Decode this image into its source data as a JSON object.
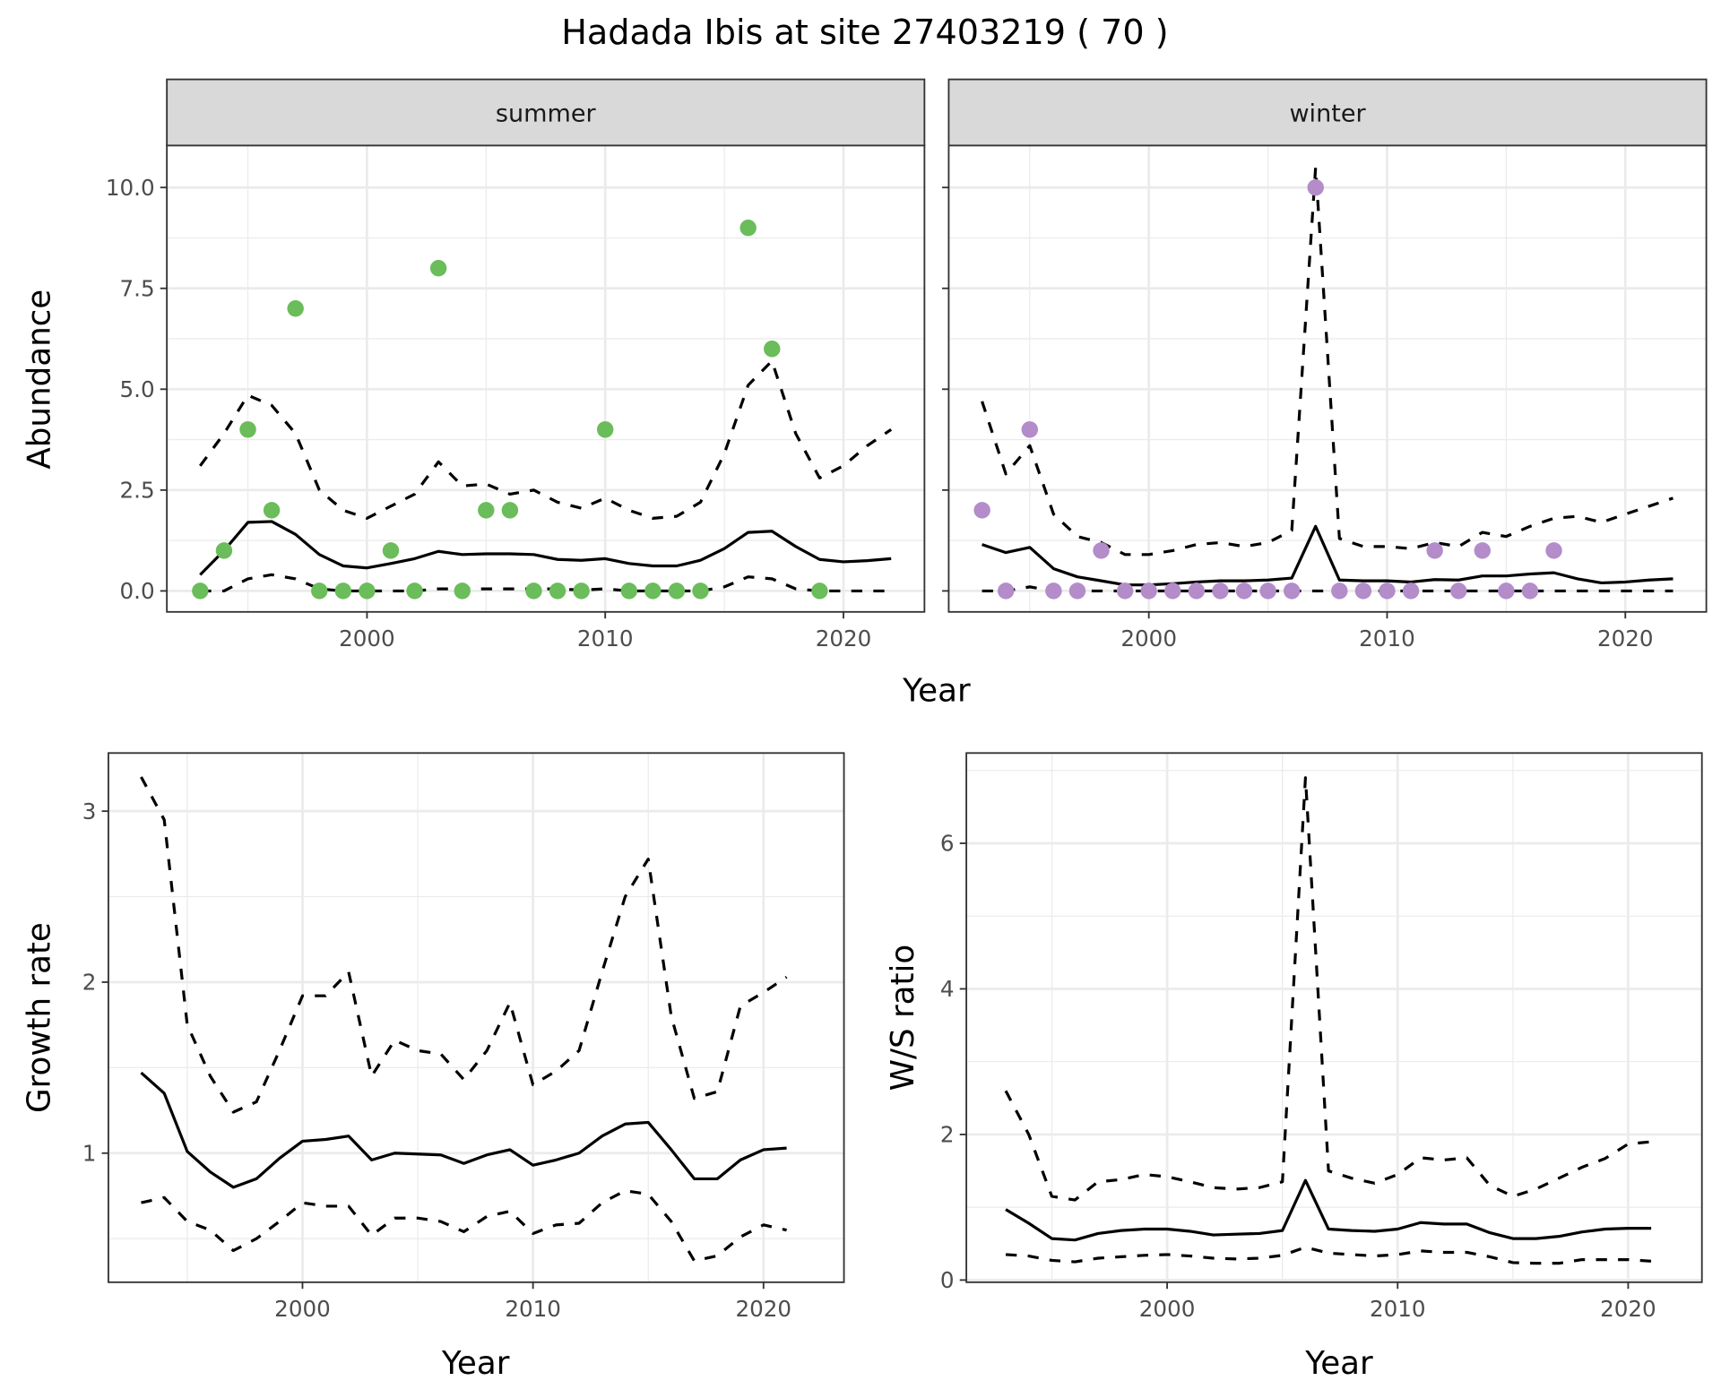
{
  "title": "Hadada Ibis at site 27403219 ( 70 )",
  "colors": {
    "summer_points": "#6abd5a",
    "winter_points": "#b38cc9",
    "lines": "#000000",
    "strip_bg": "#d9d9d9",
    "grid": "#ebebeb"
  },
  "chart_data": [
    {
      "type": "line+scatter",
      "facet": "summer",
      "xlabel": "Year",
      "ylabel": "Abundance",
      "xlim": [
        1991.6,
        2023.4
      ],
      "ylim": [
        -0.52,
        11.04
      ],
      "xticks": [
        2000,
        2010,
        2020
      ],
      "xtick_labels": [
        "2000",
        "2010",
        "2020"
      ],
      "yticks": [
        0,
        2.5,
        5,
        7.5,
        10
      ],
      "ytick_labels": [
        "0.0",
        "2.5",
        "5.0",
        "7.5",
        "10.0"
      ],
      "grid": true,
      "points": {
        "x": [
          1993,
          1994,
          1995,
          1996,
          1997,
          1998,
          1999,
          2000,
          2001,
          2002,
          2003,
          2004,
          2005,
          2006,
          2007,
          2008,
          2009,
          2010,
          2011,
          2012,
          2013,
          2014,
          2016,
          2017,
          2019
        ],
        "y": [
          0,
          1,
          4,
          2,
          7,
          0,
          0,
          0,
          1,
          0,
          8,
          0,
          2,
          2,
          0,
          0,
          0,
          4,
          0,
          0,
          0,
          0,
          9,
          6,
          0
        ]
      },
      "x": [
        1993,
        1994,
        1995,
        1996,
        1997,
        1998,
        1999,
        2000,
        2001,
        2002,
        2003,
        2004,
        2005,
        2006,
        2007,
        2008,
        2009,
        2010,
        2011,
        2012,
        2013,
        2014,
        2015,
        2016,
        2017,
        2018,
        2019,
        2020,
        2021,
        2022
      ],
      "mean": [
        0.4,
        1.0,
        1.7,
        1.72,
        1.4,
        0.9,
        0.62,
        0.57,
        0.68,
        0.8,
        0.98,
        0.9,
        0.92,
        0.92,
        0.9,
        0.78,
        0.76,
        0.8,
        0.68,
        0.62,
        0.62,
        0.76,
        1.05,
        1.45,
        1.48,
        1.1,
        0.78,
        0.72,
        0.75,
        0.8
      ],
      "upper": [
        3.1,
        3.9,
        4.85,
        4.6,
        3.9,
        2.5,
        2.0,
        1.8,
        2.1,
        2.4,
        3.2,
        2.6,
        2.65,
        2.4,
        2.5,
        2.2,
        2.05,
        2.3,
        2.0,
        1.8,
        1.85,
        2.2,
        3.4,
        5.1,
        5.7,
        3.9,
        2.8,
        3.1,
        3.6,
        4.0
      ],
      "lower": [
        0,
        0,
        0.3,
        0.4,
        0.3,
        0.05,
        0,
        0,
        0,
        0,
        0.05,
        0.05,
        0.05,
        0.05,
        0.05,
        0.05,
        0.02,
        0.05,
        0,
        0,
        0,
        0,
        0.1,
        0.35,
        0.3,
        0.05,
        0,
        0,
        0,
        0
      ]
    },
    {
      "type": "line+scatter",
      "facet": "winter",
      "xlabel": "Year",
      "ylabel": "Abundance",
      "xlim": [
        1991.6,
        2023.4
      ],
      "ylim": [
        -0.52,
        11.04
      ],
      "xticks": [
        2000,
        2010,
        2020
      ],
      "xtick_labels": [
        "2000",
        "2010",
        "2020"
      ],
      "yticks": [
        0,
        2.5,
        5,
        7.5,
        10
      ],
      "grid": true,
      "points": {
        "x": [
          1993,
          1994,
          1995,
          1996,
          1997,
          1998,
          1999,
          2000,
          2001,
          2002,
          2003,
          2004,
          2005,
          2006,
          2007,
          2008,
          2009,
          2010,
          2011,
          2012,
          2013,
          2014,
          2015,
          2016,
          2017
        ],
        "y": [
          2,
          0,
          4,
          0,
          0,
          1,
          0,
          0,
          0,
          0,
          0,
          0,
          0,
          0,
          10,
          0,
          0,
          0,
          0,
          1,
          0,
          1,
          0,
          0,
          1
        ]
      },
      "x": [
        1993,
        1994,
        1995,
        1996,
        1997,
        1998,
        1999,
        2000,
        2001,
        2002,
        2003,
        2004,
        2005,
        2006,
        2007,
        2008,
        2009,
        2010,
        2011,
        2012,
        2013,
        2014,
        2015,
        2016,
        2017,
        2018,
        2019,
        2020,
        2021,
        2022
      ],
      "mean": [
        1.15,
        0.95,
        1.08,
        0.55,
        0.35,
        0.25,
        0.15,
        0.15,
        0.18,
        0.22,
        0.25,
        0.25,
        0.27,
        0.32,
        1.6,
        0.27,
        0.25,
        0.25,
        0.22,
        0.28,
        0.27,
        0.37,
        0.37,
        0.42,
        0.45,
        0.3,
        0.2,
        0.22,
        0.27,
        0.3
      ],
      "upper": [
        4.7,
        2.9,
        3.6,
        1.9,
        1.35,
        1.2,
        0.9,
        0.9,
        1.0,
        1.15,
        1.2,
        1.1,
        1.2,
        1.5,
        10.5,
        1.3,
        1.1,
        1.1,
        1.05,
        1.2,
        1.1,
        1.45,
        1.35,
        1.6,
        1.8,
        1.85,
        1.7,
        1.9,
        2.1,
        2.3
      ],
      "lower": [
        0,
        0,
        0.1,
        0,
        0,
        0,
        0,
        0,
        0,
        0,
        0,
        0,
        0,
        0,
        0,
        0,
        0,
        0,
        0,
        0,
        0,
        0,
        0,
        0,
        0,
        0,
        0,
        0,
        0,
        0
      ]
    },
    {
      "type": "line",
      "xlabel": "Year",
      "ylabel": "Growth rate",
      "xlim": [
        1991.58,
        2023.49
      ],
      "ylim": [
        0.245,
        3.34
      ],
      "xticks": [
        2000,
        2010,
        2020
      ],
      "xtick_labels": [
        "2000",
        "2010",
        "2020"
      ],
      "yticks": [
        1,
        2,
        3
      ],
      "ytick_labels": [
        "1",
        "2",
        "3"
      ],
      "grid": true,
      "x": [
        1993,
        1994,
        1995,
        1996,
        1997,
        1998,
        1999,
        2000,
        2001,
        2002,
        2003,
        2004,
        2005,
        2006,
        2007,
        2008,
        2009,
        2010,
        2011,
        2012,
        2013,
        2014,
        2015,
        2016,
        2017,
        2018,
        2019,
        2020,
        2021
      ],
      "mean": [
        1.47,
        1.35,
        1.01,
        0.89,
        0.8,
        0.85,
        0.97,
        1.07,
        1.08,
        1.1,
        0.96,
        1.0,
        0.995,
        0.99,
        0.94,
        0.99,
        1.02,
        0.93,
        0.96,
        1.0,
        1.1,
        1.17,
        1.18,
        1.02,
        0.85,
        0.85,
        0.96,
        1.02,
        1.03
      ],
      "upper": [
        3.2,
        2.95,
        1.75,
        1.45,
        1.24,
        1.3,
        1.6,
        1.92,
        1.92,
        2.06,
        1.45,
        1.66,
        1.6,
        1.58,
        1.43,
        1.6,
        1.88,
        1.4,
        1.48,
        1.6,
        2.06,
        2.5,
        2.72,
        1.8,
        1.32,
        1.36,
        1.86,
        1.94,
        2.03
      ],
      "lower": [
        0.71,
        0.74,
        0.6,
        0.55,
        0.43,
        0.5,
        0.6,
        0.71,
        0.69,
        0.69,
        0.52,
        0.62,
        0.62,
        0.6,
        0.54,
        0.63,
        0.66,
        0.53,
        0.58,
        0.59,
        0.71,
        0.78,
        0.76,
        0.6,
        0.37,
        0.4,
        0.51,
        0.58,
        0.55
      ]
    },
    {
      "type": "line",
      "xlabel": "Year",
      "ylabel": "W/S ratio",
      "xlim": [
        1991.29,
        2023.2
      ],
      "ylim": [
        -0.03,
        7.24
      ],
      "xticks": [
        2000,
        2010,
        2020
      ],
      "xtick_labels": [
        "2000",
        "2010",
        "2020"
      ],
      "yticks": [
        0,
        2,
        4,
        6
      ],
      "ytick_labels": [
        "0",
        "2",
        "4",
        "6"
      ],
      "grid": true,
      "x": [
        1993,
        1994,
        1995,
        1996,
        1997,
        1998,
        1999,
        2000,
        2001,
        2002,
        2003,
        2004,
        2005,
        2006,
        2007,
        2008,
        2009,
        2010,
        2011,
        2012,
        2013,
        2014,
        2015,
        2016,
        2017,
        2018,
        2019,
        2020,
        2021
      ],
      "mean": [
        0.97,
        0.78,
        0.57,
        0.55,
        0.64,
        0.68,
        0.7,
        0.7,
        0.67,
        0.62,
        0.63,
        0.64,
        0.68,
        1.37,
        0.7,
        0.68,
        0.67,
        0.7,
        0.79,
        0.77,
        0.77,
        0.65,
        0.57,
        0.57,
        0.6,
        0.66,
        0.7,
        0.71,
        0.71
      ],
      "upper": [
        2.6,
        2.0,
        1.15,
        1.1,
        1.35,
        1.38,
        1.45,
        1.42,
        1.35,
        1.27,
        1.25,
        1.27,
        1.35,
        6.9,
        1.5,
        1.4,
        1.33,
        1.45,
        1.68,
        1.65,
        1.68,
        1.3,
        1.15,
        1.25,
        1.4,
        1.55,
        1.67,
        1.87,
        1.9
      ],
      "lower": [
        0.35,
        0.33,
        0.27,
        0.25,
        0.3,
        0.32,
        0.34,
        0.35,
        0.33,
        0.3,
        0.29,
        0.3,
        0.34,
        0.45,
        0.37,
        0.35,
        0.33,
        0.35,
        0.4,
        0.38,
        0.38,
        0.32,
        0.24,
        0.23,
        0.23,
        0.28,
        0.28,
        0.28,
        0.26
      ]
    }
  ]
}
